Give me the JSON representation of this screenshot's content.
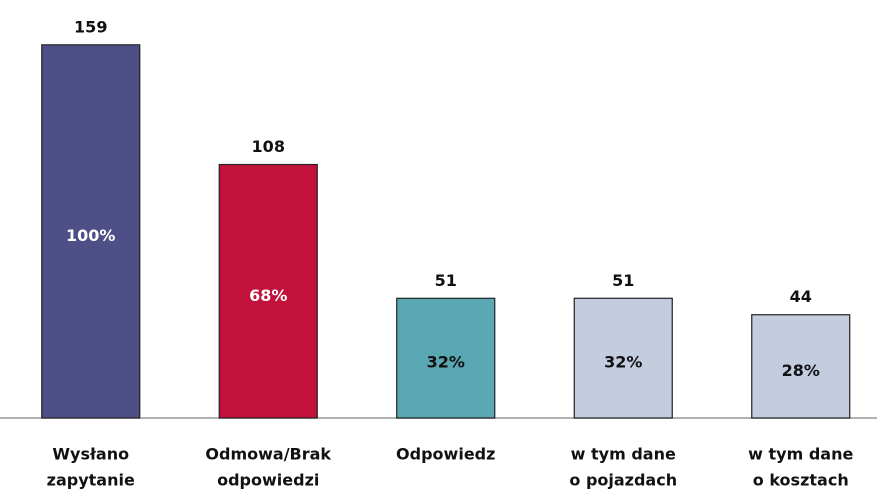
{
  "chart_data": {
    "type": "bar",
    "categories": [
      [
        "Wysłano",
        "zapytanie"
      ],
      [
        "Odmowa/Brak",
        "odpowiedzi"
      ],
      [
        "Odpowiedz"
      ],
      [
        "w tym dane",
        "o pojazdach"
      ],
      [
        "w tym dane",
        "o kosztach"
      ]
    ],
    "values": [
      159,
      108,
      51,
      51,
      44
    ],
    "share_labels": [
      "100%",
      "68%",
      "32%",
      "32%",
      "28%"
    ],
    "colors": [
      "#4f4f87",
      "#c2113b",
      "#5aa8b3",
      "#c4cde0",
      "#c4cde0"
    ],
    "share_label_colors": [
      "#ffffff",
      "#ffffff",
      "#111111",
      "#111111",
      "#111111"
    ],
    "ylim": [
      0,
      170
    ]
  }
}
